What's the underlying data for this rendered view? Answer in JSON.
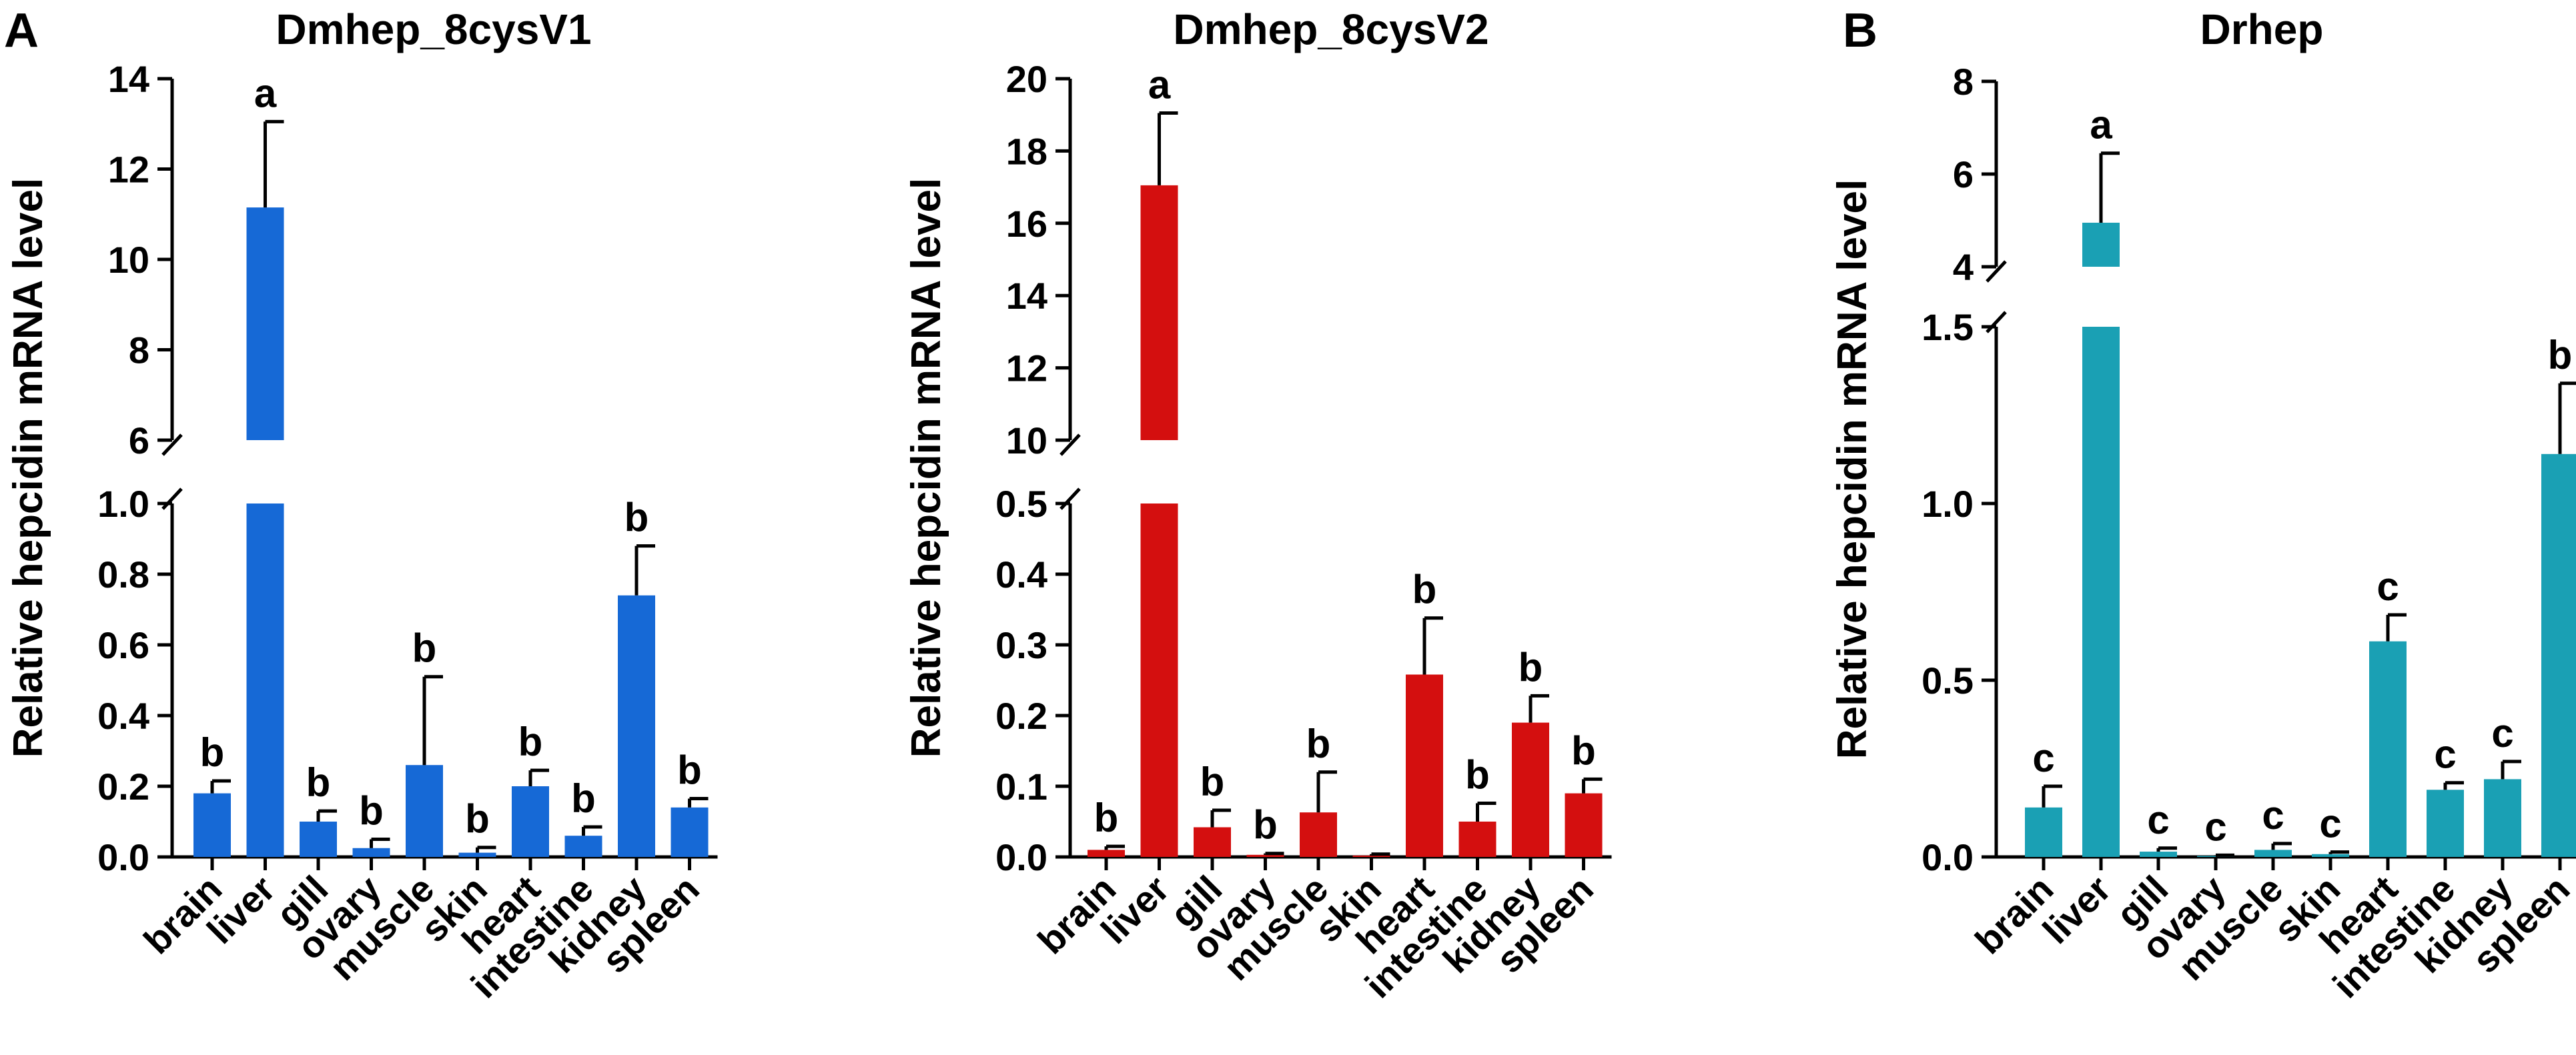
{
  "panels": [
    {
      "letter": "A",
      "label_target": 0
    },
    {
      "letter": "B",
      "label_target": 2
    }
  ],
  "chart_data": [
    {
      "type": "bar",
      "title": "Dmhep_8cysV1",
      "ylabel": "Relative hepcidin mRNA level",
      "color": "#1669d6",
      "categories": [
        "brain",
        "liver",
        "gill",
        "ovary",
        "muscle",
        "skin",
        "heart",
        "intestine",
        "kidney",
        "spleen"
      ],
      "values": [
        0.18,
        11.15,
        0.1,
        0.025,
        0.26,
        0.012,
        0.2,
        0.06,
        0.74,
        0.14
      ],
      "errors": [
        0.035,
        1.9,
        0.03,
        0.025,
        0.25,
        0.015,
        0.045,
        0.025,
        0.14,
        0.025
      ],
      "letters": [
        "b",
        "a",
        "b",
        "b",
        "b",
        "b",
        "b",
        "b",
        "b",
        "b"
      ],
      "axis_break": true,
      "lower_range": [
        0,
        1.0
      ],
      "lower_ticks": [
        "0.0",
        "0.2",
        "0.4",
        "0.6",
        "0.8",
        "1.0"
      ],
      "upper_range": [
        6,
        14
      ],
      "upper_ticks": [
        "6",
        "8",
        "10",
        "12",
        "14"
      ]
    },
    {
      "type": "bar",
      "title": "Dmhep_8cysV2",
      "ylabel": "Relative hepcidin mRNA level",
      "color": "#d40f0f",
      "categories": [
        "brain",
        "liver",
        "gill",
        "ovary",
        "muscle",
        "skin",
        "heart",
        "intestine",
        "kidney",
        "spleen"
      ],
      "values": [
        0.01,
        17.05,
        0.042,
        0.003,
        0.063,
        0.002,
        0.258,
        0.05,
        0.19,
        0.09
      ],
      "errors": [
        0.005,
        2.0,
        0.024,
        0.002,
        0.057,
        0.002,
        0.08,
        0.026,
        0.038,
        0.02
      ],
      "letters": [
        "b",
        "a",
        "b",
        "b",
        "b",
        "",
        "b",
        "b",
        "b",
        "b"
      ],
      "axis_break": true,
      "lower_range": [
        0,
        0.5
      ],
      "lower_ticks": [
        "0.0",
        "0.1",
        "0.2",
        "0.3",
        "0.4",
        "0.5"
      ],
      "upper_range": [
        10,
        20
      ],
      "upper_ticks": [
        "10",
        "12",
        "14",
        "16",
        "18",
        "20"
      ]
    },
    {
      "type": "bar",
      "title": "Drhep",
      "ylabel": "Relative hepcidin mRNA level",
      "color": "#1aa0b4",
      "categories": [
        "brain",
        "liver",
        "gill",
        "ovary",
        "muscle",
        "skin",
        "heart",
        "intestine",
        "kidney",
        "spleen"
      ],
      "values": [
        0.14,
        4.95,
        0.015,
        0.003,
        0.02,
        0.008,
        0.61,
        0.19,
        0.22,
        1.14
      ],
      "errors": [
        0.06,
        1.5,
        0.01,
        0.002,
        0.018,
        0.006,
        0.075,
        0.02,
        0.05,
        0.2
      ],
      "letters": [
        "c",
        "a",
        "c",
        "c",
        "c",
        "c",
        "c",
        "c",
        "c",
        "b"
      ],
      "axis_break": true,
      "lower_range": [
        0,
        1.5
      ],
      "lower_ticks": [
        "0.0",
        "0.5",
        "1.0",
        "1.5"
      ],
      "upper_range": [
        4,
        8
      ],
      "upper_ticks": [
        "4",
        "6",
        "8"
      ]
    }
  ]
}
